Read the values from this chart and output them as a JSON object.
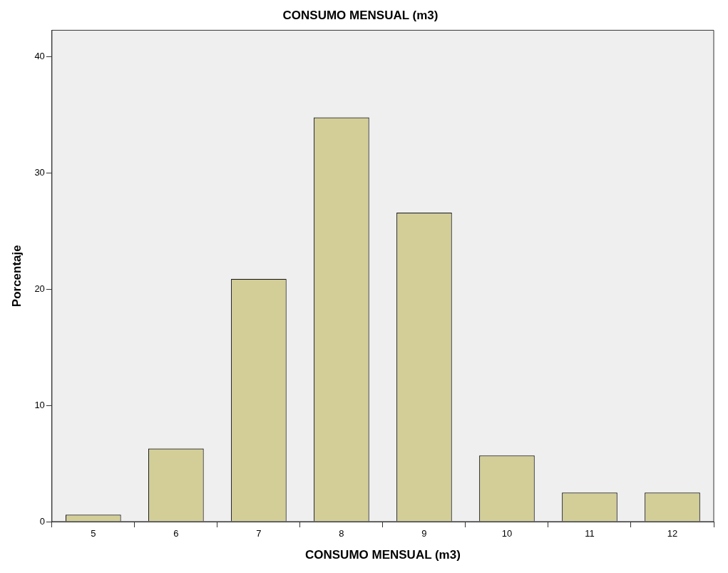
{
  "chart_data": {
    "type": "bar",
    "title": "CONSUMO MENSUAL (m3)",
    "xlabel": "CONSUMO MENSUAL (m3)",
    "ylabel": "Porcentaje",
    "categories": [
      "5",
      "6",
      "7",
      "8",
      "9",
      "10",
      "11",
      "12"
    ],
    "values": [
      0.6,
      6.3,
      20.9,
      34.8,
      26.6,
      5.7,
      2.5,
      2.5
    ],
    "color": "#d3ce97",
    "ylim": [
      0,
      42.3
    ],
    "yticks": [
      0,
      10,
      20,
      30,
      40
    ]
  }
}
